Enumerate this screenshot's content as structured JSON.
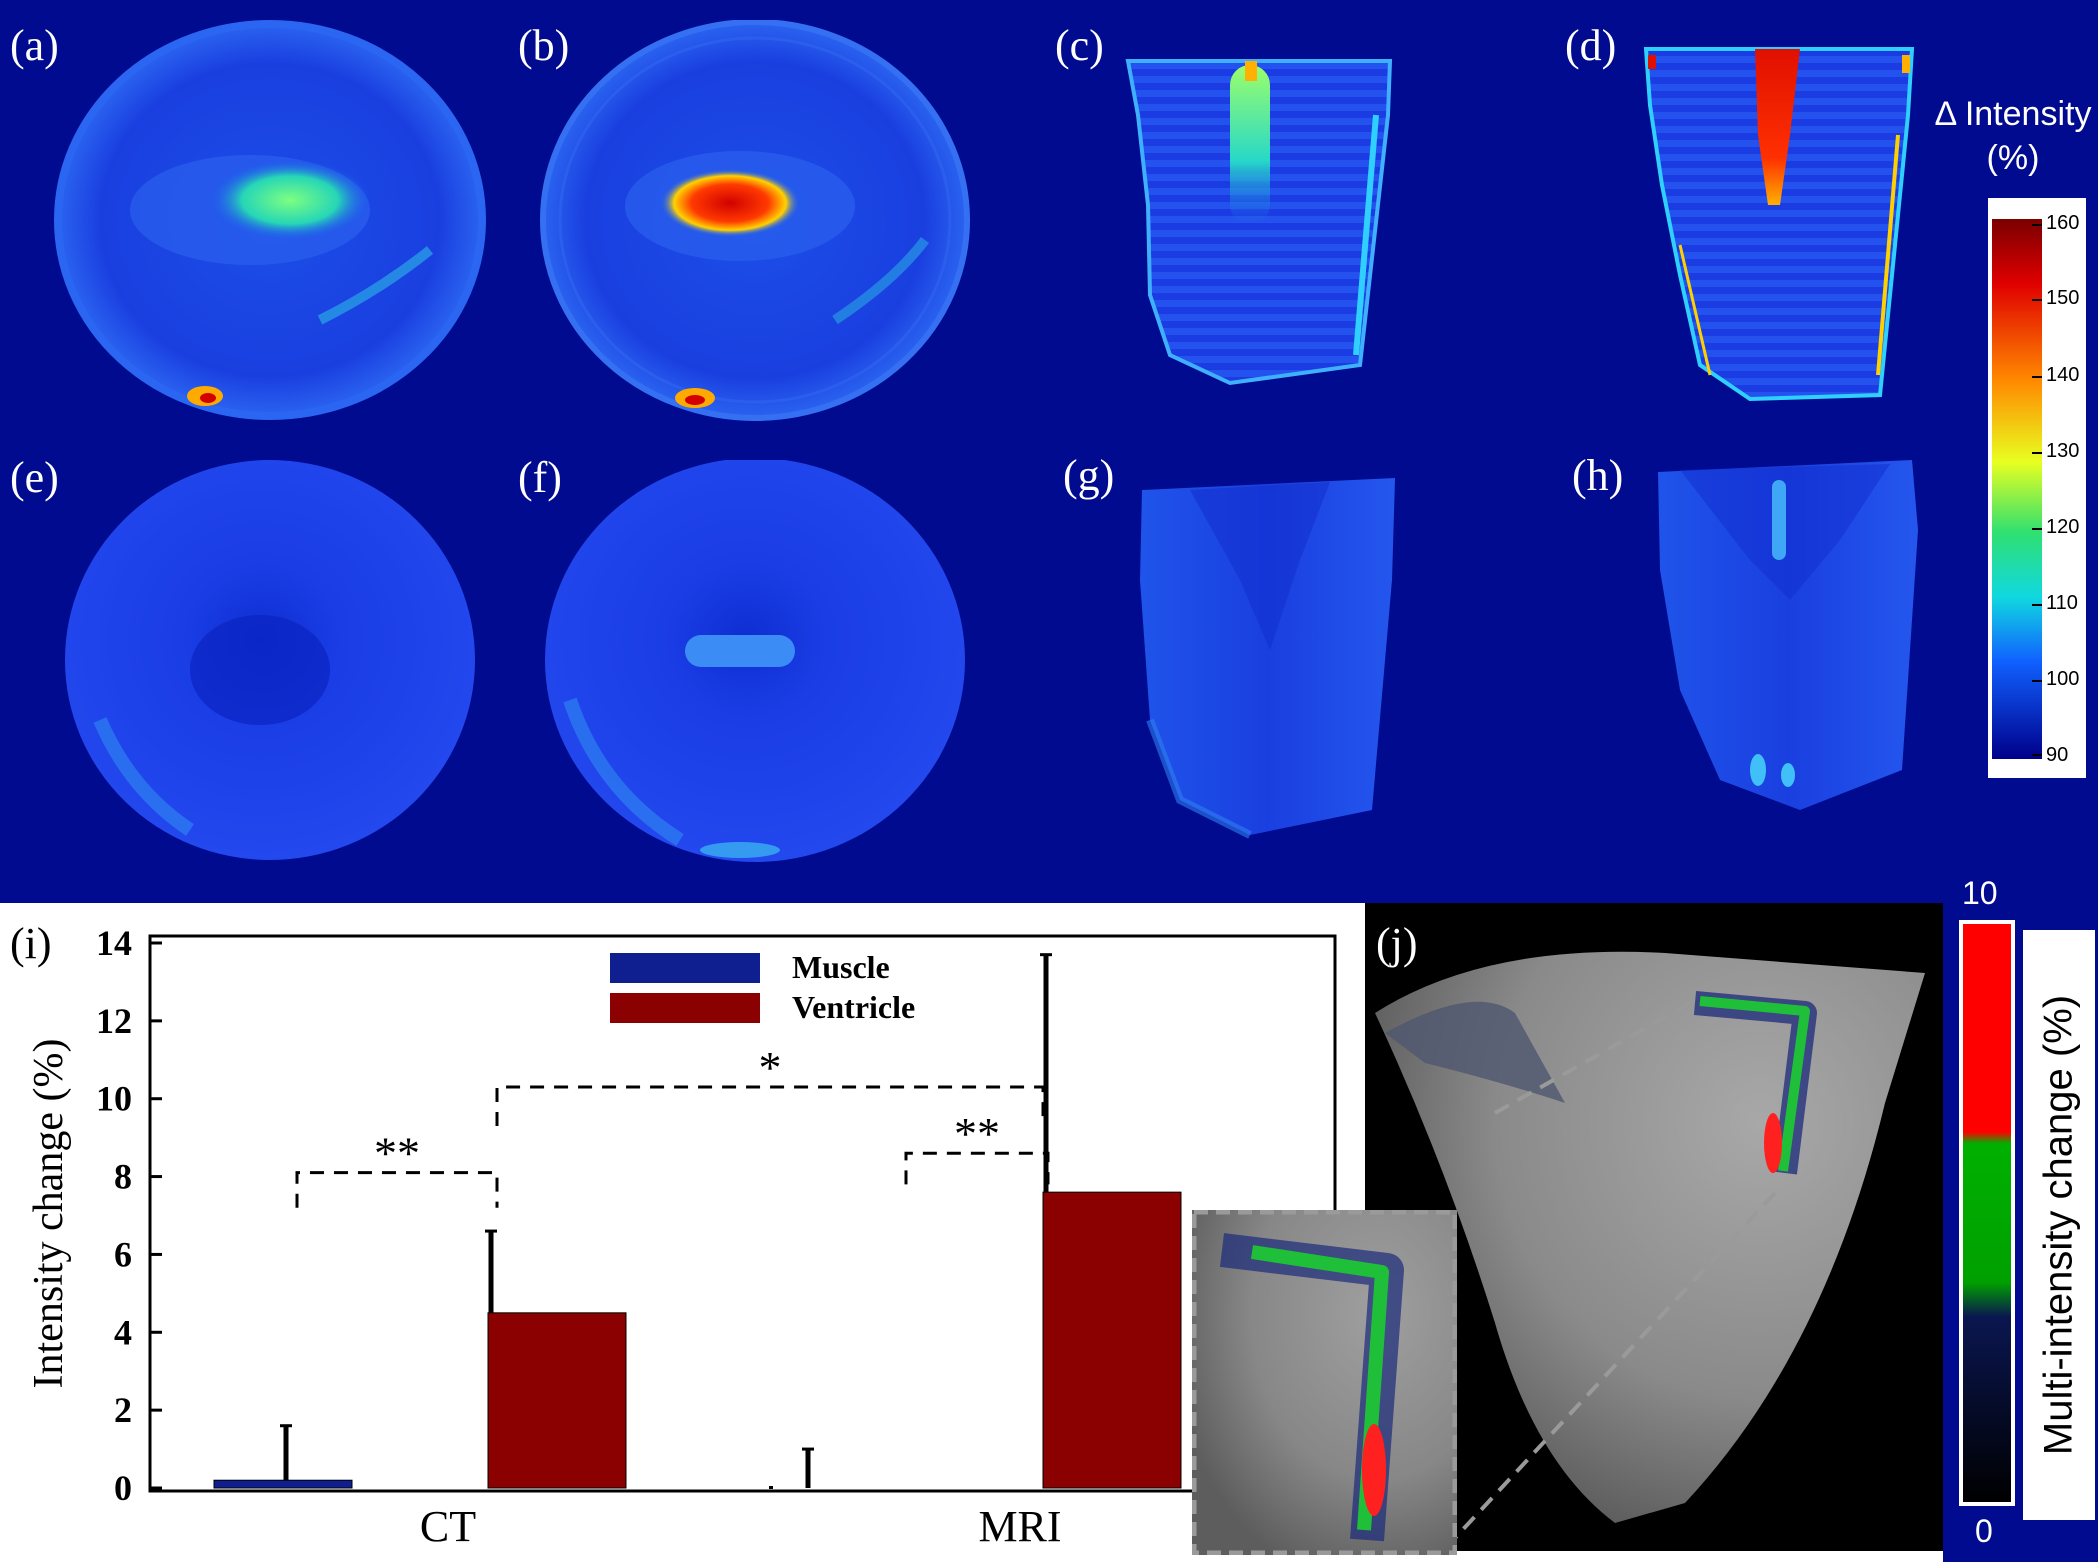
{
  "panel_labels": {
    "a": "(a)",
    "b": "(b)",
    "c": "(c)",
    "d": "(d)",
    "e": "(e)",
    "f": "(f)",
    "g": "(g)",
    "h": "(h)",
    "i": "(i)",
    "j": "(j)"
  },
  "colorbar_top": {
    "title_line1": "Δ Intensity",
    "title_line2": "(%)",
    "ticks": [
      "160",
      "150",
      "140",
      "130",
      "120",
      "110",
      "100",
      "90"
    ]
  },
  "colorbar_bottom": {
    "max": "10",
    "min": "0",
    "title": "Multi-intensity change (%)"
  },
  "colors": {
    "background_blue": "#010b8f",
    "bar_muscle": "#0f1f8f",
    "bar_ventricle": "#8b0000"
  },
  "chart_data": {
    "type": "bar",
    "categories": [
      "CT",
      "MRI"
    ],
    "series": [
      {
        "name": "Muscle",
        "values": [
          0.2,
          0.0
        ],
        "error": [
          1.4,
          1.0
        ]
      },
      {
        "name": "Ventricle",
        "values": [
          4.5,
          7.6
        ],
        "error": [
          2.1,
          6.1
        ]
      }
    ],
    "ylabel": "Intensity change (%)",
    "xlabel": "",
    "ylim": [
      0,
      14
    ],
    "yticks": [
      "0",
      "2",
      "4",
      "6",
      "8",
      "10",
      "12",
      "14"
    ],
    "significance": [
      {
        "label": "**",
        "between": "CT Muscle vs CT Ventricle"
      },
      {
        "label": "**",
        "between": "MRI Muscle vs MRI Ventricle"
      },
      {
        "label": "*",
        "between": "CT Ventricle vs MRI Ventricle"
      }
    ],
    "legend_position": "top-center",
    "grid": false
  }
}
